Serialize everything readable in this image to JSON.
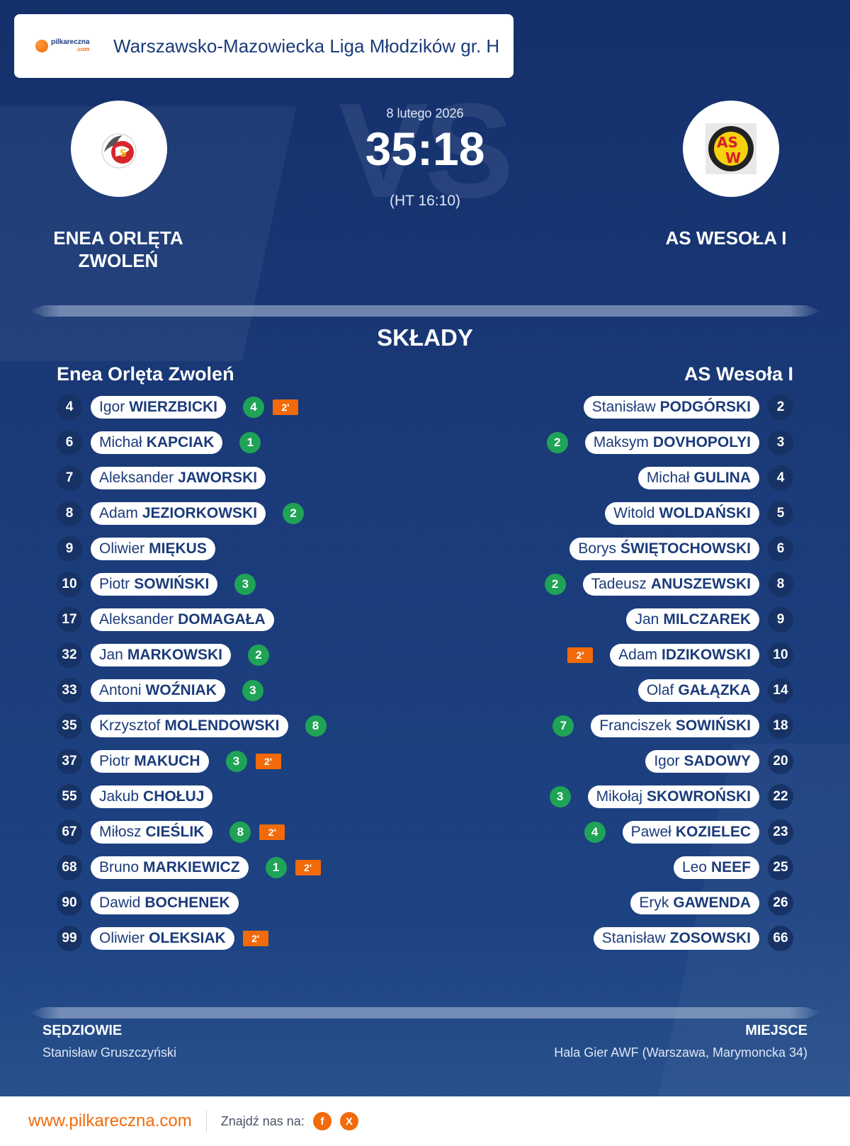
{
  "header": {
    "logo_text": "pilkareczna",
    "logo_sub": ".com",
    "league": "Warszawsko-Mazowiecka Liga Młodzików gr. H"
  },
  "match": {
    "date": "8 lutego 2026",
    "score": "35:18",
    "halftime": "(HT 16:10)",
    "watermark": "VS"
  },
  "home": {
    "name_line1": "ENEA ORLĘTA",
    "name_line2": "ZWOLEŃ",
    "squad_title": "Enea Orlęta Zwoleń",
    "crest_text": "KS ORLĘTA ZWOLEŃ"
  },
  "away": {
    "name": "AS WESOŁA I",
    "squad_title": "AS Wesoła I",
    "crest_text": "ASW"
  },
  "section_title": "SKŁADY",
  "home_players": [
    {
      "num": "4",
      "first": "Igor",
      "last": "WIERZBICKI",
      "goals": "4",
      "card": "2'"
    },
    {
      "num": "6",
      "first": "Michał",
      "last": "KAPCIAK",
      "goals": "1",
      "card": ""
    },
    {
      "num": "7",
      "first": "Aleksander",
      "last": "JAWORSKI",
      "goals": "",
      "card": ""
    },
    {
      "num": "8",
      "first": "Adam",
      "last": "JEZIORKOWSKI",
      "goals": "2",
      "card": ""
    },
    {
      "num": "9",
      "first": "Oliwier",
      "last": "MIĘKUS",
      "goals": "",
      "card": ""
    },
    {
      "num": "10",
      "first": "Piotr",
      "last": "SOWIŃSKI",
      "goals": "3",
      "card": ""
    },
    {
      "num": "17",
      "first": "Aleksander",
      "last": "DOMAGAŁA",
      "goals": "",
      "card": ""
    },
    {
      "num": "32",
      "first": "Jan",
      "last": "MARKOWSKI",
      "goals": "2",
      "card": ""
    },
    {
      "num": "33",
      "first": "Antoni",
      "last": "WOŹNIAK",
      "goals": "3",
      "card": ""
    },
    {
      "num": "35",
      "first": "Krzysztof",
      "last": "MOLENDOWSKI",
      "goals": "8",
      "card": ""
    },
    {
      "num": "37",
      "first": "Piotr",
      "last": "MAKUCH",
      "goals": "3",
      "card": "2'"
    },
    {
      "num": "55",
      "first": "Jakub",
      "last": "CHOŁUJ",
      "goals": "",
      "card": ""
    },
    {
      "num": "67",
      "first": "Miłosz",
      "last": "CIEŚLIK",
      "goals": "8",
      "card": "2'"
    },
    {
      "num": "68",
      "first": "Bruno",
      "last": "MARKIEWICZ",
      "goals": "1",
      "card": "2'"
    },
    {
      "num": "90",
      "first": "Dawid",
      "last": "BOCHENEK",
      "goals": "",
      "card": ""
    },
    {
      "num": "99",
      "first": "Oliwier",
      "last": "OLEKSIAK",
      "goals": "",
      "card": "2'"
    }
  ],
  "away_players": [
    {
      "num": "2",
      "first": "Stanisław",
      "last": "PODGÓRSKI",
      "goals": "",
      "card": ""
    },
    {
      "num": "3",
      "first": "Maksym",
      "last": "DOVHOPOLYI",
      "goals": "2",
      "card": ""
    },
    {
      "num": "4",
      "first": "Michał",
      "last": "GULINA",
      "goals": "",
      "card": ""
    },
    {
      "num": "5",
      "first": "Witold",
      "last": "WOLDAŃSKI",
      "goals": "",
      "card": ""
    },
    {
      "num": "6",
      "first": "Borys",
      "last": "ŚWIĘTOCHOWSKI",
      "goals": "",
      "card": ""
    },
    {
      "num": "8",
      "first": "Tadeusz",
      "last": "ANUSZEWSKI",
      "goals": "2",
      "card": ""
    },
    {
      "num": "9",
      "first": "Jan",
      "last": "MILCZAREK",
      "goals": "",
      "card": ""
    },
    {
      "num": "10",
      "first": "Adam",
      "last": "IDZIKOWSKI",
      "goals": "",
      "card": "2'"
    },
    {
      "num": "14",
      "first": "Olaf",
      "last": "GAŁĄZKA",
      "goals": "",
      "card": ""
    },
    {
      "num": "18",
      "first": "Franciszek",
      "last": "SOWIŃSKI",
      "goals": "7",
      "card": ""
    },
    {
      "num": "20",
      "first": "Igor",
      "last": "SADOWY",
      "goals": "",
      "card": ""
    },
    {
      "num": "22",
      "first": "Mikołaj",
      "last": "SKOWROŃSKI",
      "goals": "3",
      "card": ""
    },
    {
      "num": "23",
      "first": "Paweł",
      "last": "KOZIELEC",
      "goals": "4",
      "card": ""
    },
    {
      "num": "25",
      "first": "Leo",
      "last": "NEEF",
      "goals": "",
      "card": ""
    },
    {
      "num": "26",
      "first": "Eryk",
      "last": "GAWENDA",
      "goals": "",
      "card": ""
    },
    {
      "num": "66",
      "first": "Stanisław",
      "last": "ZOSOWSKI",
      "goals": "",
      "card": ""
    }
  ],
  "referees": {
    "label": "SĘDZIOWIE",
    "value": "Stanisław Gruszczyński"
  },
  "venue": {
    "label": "MIEJSCE",
    "value": "Hala Gier AWF (Warszawa, Marymoncka 34)"
  },
  "footer": {
    "site": "www.pilkareczna.com",
    "find_us": "Znajdź nas na:",
    "social": [
      {
        "icon": "facebook-icon",
        "glyph": "f"
      },
      {
        "icon": "x-icon",
        "glyph": "X"
      }
    ]
  },
  "colors": {
    "accent": "#f26a0a",
    "goal": "#1fa356",
    "navy": "#1b3b7a"
  }
}
